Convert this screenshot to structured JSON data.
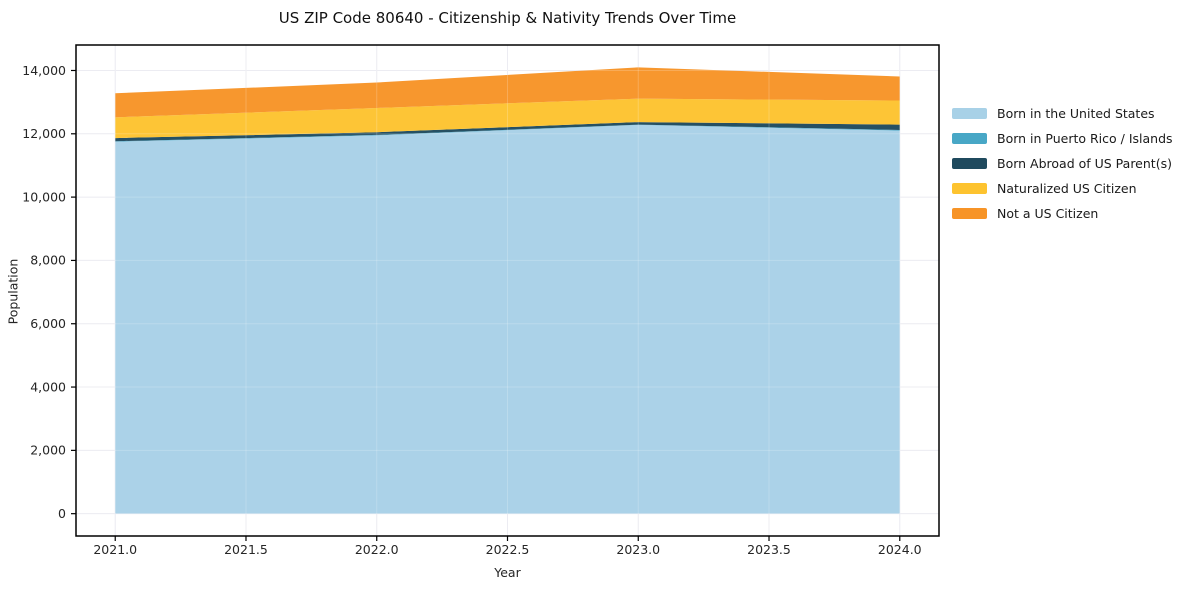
{
  "chart_data": {
    "type": "area",
    "stacked": true,
    "title": "US ZIP Code 80640 - Citizenship & Nativity Trends Over Time",
    "xlabel": "Year",
    "ylabel": "Population",
    "x": [
      2021,
      2022,
      2023,
      2024
    ],
    "series": [
      {
        "name": "Born in the United States",
        "color": "#a8d1e7",
        "values": [
          11750,
          11950,
          12280,
          12100
        ]
      },
      {
        "name": "Born in Puerto Rico / Islands",
        "color": "#48a7c6",
        "values": [
          15,
          15,
          10,
          20
        ]
      },
      {
        "name": "Born Abroad of US Parent(s)",
        "color": "#1f4a5e",
        "values": [
          100,
          85,
          80,
          170
        ]
      },
      {
        "name": "Naturalized US Citizen",
        "color": "#fdc32f",
        "values": [
          655,
          765,
          740,
          760
        ]
      },
      {
        "name": "Not a US Citizen",
        "color": "#f79427",
        "values": [
          760,
          805,
          990,
          760
        ]
      }
    ],
    "totals": [
      13280,
      13620,
      14100,
      13810
    ],
    "x_ticks": [
      2021.0,
      2021.5,
      2022.0,
      2022.5,
      2023.0,
      2023.5,
      2024.0
    ],
    "x_tick_labels": [
      "2021.0",
      "2021.5",
      "2022.0",
      "2022.5",
      "2023.0",
      "2023.5",
      "2024.0"
    ],
    "y_ticks": [
      0,
      2000,
      4000,
      6000,
      8000,
      10000,
      12000,
      14000
    ],
    "y_tick_labels": [
      "0",
      "2,000",
      "4,000",
      "6,000",
      "8,000",
      "10,000",
      "12,000",
      "14,000"
    ],
    "xlim": [
      2020.85,
      2024.15
    ],
    "ylim": [
      -705,
      14805
    ],
    "grid": true,
    "legend_position": "right-outside"
  }
}
